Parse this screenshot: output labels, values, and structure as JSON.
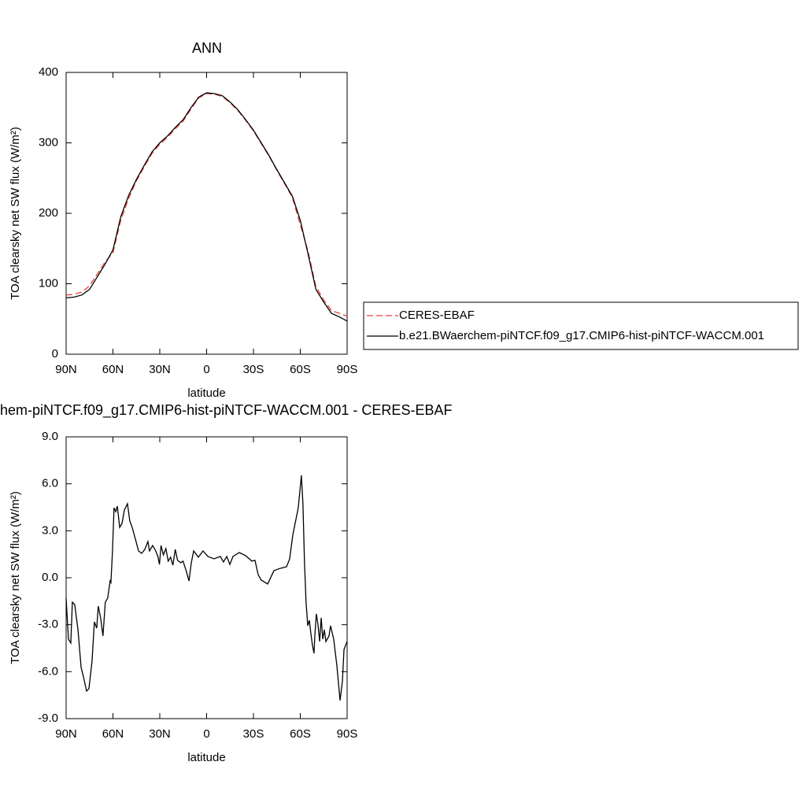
{
  "chart_data": [
    {
      "type": "line",
      "title": "ANN",
      "xlabel": "latitude",
      "ylabel": "TOA clearsky net SW flux (W/m²)",
      "x": [
        90,
        85,
        80,
        75,
        70,
        65,
        60,
        55,
        50,
        45,
        40,
        35,
        30,
        25,
        20,
        15,
        10,
        5,
        0,
        -5,
        -10,
        -15,
        -20,
        -25,
        -30,
        -35,
        -40,
        -45,
        -50,
        -55,
        -60,
        -65,
        -70,
        -75,
        -80,
        -85,
        -90
      ],
      "xlim": [
        90,
        -90
      ],
      "xticks": [
        {
          "value": 90,
          "label": "90N"
        },
        {
          "value": 60,
          "label": "60N"
        },
        {
          "value": 30,
          "label": "30N"
        },
        0,
        {
          "value": -30,
          "label": "30S"
        },
        {
          "value": -60,
          "label": "60S"
        },
        {
          "value": -90,
          "label": "90S"
        }
      ],
      "ylim": [
        0,
        400
      ],
      "yticks": [
        0,
        100,
        200,
        300,
        400
      ],
      "legend": "right",
      "series": [
        {
          "name": "CERES-EBAF",
          "color": "#e8403a",
          "dashed": true,
          "values": [
            84,
            85,
            88,
            97,
            114,
            131,
            144,
            190,
            221,
            246,
            266,
            285,
            298,
            308,
            320,
            331,
            348,
            364,
            370,
            369,
            366,
            357,
            346,
            332,
            317,
            299,
            281,
            261,
            242,
            222,
            184,
            146,
            96,
            77,
            62,
            58,
            54
          ]
        },
        {
          "name": "b.e21.BWaerchem-piNTCF.f09_g17.CMIP6-hist-piNTCF-WACCM.001",
          "color": "#000000",
          "dashed": false,
          "values": [
            80,
            81,
            84,
            92,
            110,
            128,
            148,
            195,
            225,
            248,
            268,
            287,
            300,
            310,
            322,
            333,
            350,
            365,
            371,
            370,
            367,
            358,
            347,
            333,
            318,
            300,
            282,
            262,
            243,
            224,
            190,
            142,
            92,
            74,
            58,
            53,
            47
          ]
        }
      ]
    },
    {
      "type": "line",
      "title": "hem-piNTCF.f09_g17.CMIP6-hist-piNTCF-WACCM.001 - CERES-EBAF",
      "xlabel": "latitude",
      "ylabel": "TOA clearsky net SW flux (W/m²)",
      "x": [
        90,
        88.5,
        87,
        86,
        84.5,
        82.4,
        80.4,
        78.9,
        76.9,
        75.4,
        73.4,
        71.9,
        70.4,
        69.4,
        67.9,
        66.4,
        64.9,
        63.4,
        61.8,
        61.3,
        60.3,
        59.3,
        58.2,
        57.2,
        55.7,
        54.2,
        52.7,
        50.7,
        49.2,
        47.7,
        45.6,
        43.6,
        41.6,
        39.6,
        37.6,
        36.6,
        34.6,
        32.6,
        31.2,
        30.2,
        29.2,
        27.7,
        26.1,
        24.6,
        23.1,
        21.6,
        20.1,
        18.6,
        16.6,
        15.1,
        13.1,
        11.3,
        9.8,
        8.3,
        5.3,
        2.3,
        -0.8,
        -4.8,
        -8.8,
        -10.8,
        -12.9,
        -14.9,
        -16.9,
        -20.9,
        -25,
        -29,
        -31,
        -33,
        -35,
        -39.1,
        -43.1,
        -47.1,
        -51.2,
        -53.2,
        -55.2,
        -57.2,
        -58.7,
        -59.7,
        -60.7,
        -61.7,
        -62.7,
        -63.7,
        -64.8,
        -65.8,
        -66.8,
        -67.8,
        -68.8,
        -69.3,
        -70.3,
        -71.3,
        -72.4,
        -73.4,
        -74.4,
        -75.4,
        -76.4,
        -78.4,
        -79.4,
        -81.4,
        -83.4,
        -85.5,
        -87,
        -88,
        -90
      ],
      "xlim": [
        90,
        -90
      ],
      "xticks": [
        {
          "value": 90,
          "label": "90N"
        },
        {
          "value": 60,
          "label": "60N"
        },
        {
          "value": 30,
          "label": "30N"
        },
        0,
        {
          "value": -30,
          "label": "30S"
        },
        {
          "value": -60,
          "label": "60S"
        },
        {
          "value": -90,
          "label": "90S"
        }
      ],
      "ylim": [
        -9,
        9
      ],
      "yticks": [
        {
          "value": -9,
          "label": "-9.0"
        },
        {
          "value": -6,
          "label": "-6.0"
        },
        {
          "value": -3,
          "label": "-3.0"
        },
        {
          "value": 0,
          "label": "0.0"
        },
        {
          "value": 3,
          "label": "3.0"
        },
        {
          "value": 6,
          "label": "6.0"
        },
        {
          "value": 9,
          "label": "9.0"
        }
      ],
      "series": [
        {
          "color": "#000000",
          "dashed": false,
          "values": [
            -1.31,
            -3.92,
            -4.17,
            -1.56,
            -1.71,
            -3.32,
            -5.73,
            -6.33,
            -7.24,
            -7.09,
            -5.33,
            -2.82,
            -3.22,
            -1.81,
            -2.56,
            -3.72,
            -1.56,
            -1.31,
            -0.2,
            -0.3,
            1.71,
            4.47,
            4.22,
            4.58,
            3.22,
            3.47,
            4.32,
            4.73,
            3.62,
            3.22,
            2.46,
            1.71,
            1.56,
            1.81,
            2.31,
            1.71,
            2.06,
            1.71,
            1.36,
            0.85,
            2.06,
            1.46,
            1.86,
            1.06,
            1.31,
            0.8,
            1.81,
            1.11,
            0.96,
            1.06,
            0.45,
            -0.2,
            0.96,
            1.71,
            1.31,
            1.71,
            1.36,
            1.21,
            1.36,
            1.01,
            1.36,
            0.85,
            1.36,
            1.61,
            1.41,
            1.06,
            1.11,
            0.2,
            -0.15,
            -0.4,
            0.45,
            0.6,
            0.7,
            1.21,
            2.72,
            3.72,
            4.47,
            5.48,
            6.54,
            4.73,
            0.96,
            -1.56,
            -3.07,
            -2.72,
            -3.57,
            -4.32,
            -4.83,
            -3.72,
            -2.31,
            -2.97,
            -4.07,
            -2.56,
            -3.92,
            -3.32,
            -4.07,
            -3.72,
            -3.07,
            -3.92,
            -5.58,
            -7.84,
            -6.59,
            -4.58,
            -4.07
          ]
        }
      ]
    }
  ]
}
